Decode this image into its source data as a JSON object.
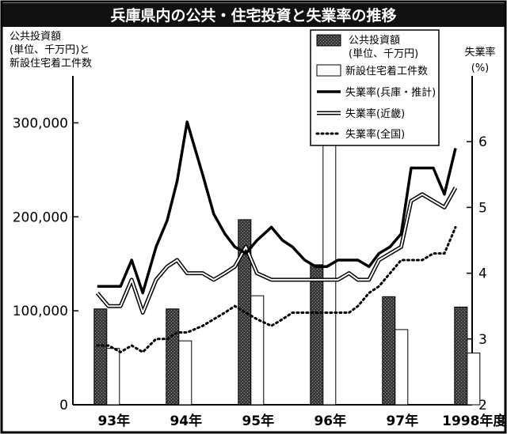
{
  "chart_data": {
    "type": "bar+line",
    "title": "兵庫県内の公共・住宅投資と失業率の推移",
    "left_axis_label": [
      "公共投資額",
      "(単位、千万円)と",
      "新設住宅着工件数"
    ],
    "right_axis_label": [
      "失業率",
      "(%)"
    ],
    "left_axis": {
      "min": 0,
      "max": 350000,
      "ticks": [
        "0",
        "100,000",
        "200,000",
        "300,000"
      ],
      "tick_values": [
        0,
        100000,
        200000,
        300000
      ]
    },
    "right_axis": {
      "min": 2,
      "max": 7,
      "ticks": [
        "2",
        "3",
        "4",
        "5",
        "6"
      ],
      "tick_values": [
        2,
        3,
        4,
        5,
        6
      ]
    },
    "x_labels": [
      "93年",
      "94年",
      "95年",
      "96年",
      "97年",
      "1998年度"
    ],
    "bar_series": [
      {
        "name": "公共投資額",
        "sub": "(単位、千万円)",
        "values": [
          102000,
          102000,
          197000,
          149000,
          115000,
          104000
        ]
      },
      {
        "name": "新設住宅着工件数",
        "values": [
          60000,
          68000,
          116000,
          342000,
          80000,
          55000
        ]
      }
    ],
    "line_series": [
      {
        "name": "失業率(兵庫・推計)",
        "style": "thick",
        "x": [
          1.1,
          1.6,
          2.15,
          2.65,
          3.15,
          3.75,
          4.25,
          4.7,
          5.15,
          5.85,
          6.35,
          6.85,
          7.3,
          7.8,
          8.3,
          8.95,
          9.45,
          9.9,
          10.45,
          10.95,
          11.45,
          11.95,
          12.45,
          12.85,
          13.35,
          13.8,
          14.3,
          14.8,
          15.25,
          15.75,
          16.25,
          16.75,
          17.25
        ],
        "values": [
          3.8,
          3.8,
          3.8,
          4.2,
          3.7,
          4.4,
          4.8,
          5.4,
          6.3,
          5.5,
          4.9,
          4.6,
          4.4,
          4.3,
          4.5,
          4.7,
          4.5,
          4.4,
          4.2,
          4.1,
          4.1,
          4.2,
          4.2,
          4.2,
          4.1,
          4.3,
          4.4,
          4.6,
          5.6,
          5.6,
          5.6,
          5.2,
          5.9
        ]
      },
      {
        "name": "失業率(近畿)",
        "style": "double",
        "x": [
          1.1,
          1.6,
          2.15,
          2.65,
          3.15,
          3.75,
          4.25,
          4.7,
          5.15,
          5.85,
          6.35,
          6.85,
          7.3,
          7.8,
          8.3,
          8.95,
          9.45,
          9.9,
          10.45,
          10.95,
          11.45,
          11.95,
          12.45,
          12.85,
          13.35,
          13.8,
          14.3,
          14.8,
          15.25,
          15.75,
          16.25,
          16.75,
          17.25
        ],
        "values": [
          3.7,
          3.5,
          3.5,
          3.9,
          3.4,
          3.9,
          4.1,
          4.2,
          4.0,
          4.0,
          3.9,
          4.0,
          4.1,
          4.4,
          4.0,
          3.9,
          3.9,
          3.9,
          3.9,
          3.9,
          3.9,
          3.9,
          4.0,
          3.9,
          3.9,
          4.2,
          4.3,
          4.4,
          5.1,
          5.2,
          5.1,
          5.0,
          5.3
        ]
      },
      {
        "name": "失業率(全国)",
        "style": "dotted",
        "x": [
          1.1,
          1.6,
          2.15,
          2.65,
          3.15,
          3.75,
          4.25,
          4.7,
          5.15,
          5.85,
          6.35,
          6.85,
          7.3,
          7.8,
          8.3,
          8.95,
          9.45,
          9.9,
          10.45,
          10.95,
          11.45,
          11.95,
          12.45,
          12.85,
          13.35,
          13.8,
          14.3,
          14.8,
          15.25,
          15.75,
          16.25,
          16.75,
          17.25
        ],
        "values": [
          2.9,
          2.9,
          2.8,
          2.9,
          2.8,
          3.0,
          3.0,
          3.1,
          3.1,
          3.2,
          3.3,
          3.4,
          3.5,
          3.4,
          3.3,
          3.2,
          3.3,
          3.4,
          3.4,
          3.4,
          3.4,
          3.4,
          3.4,
          3.5,
          3.7,
          3.8,
          4.0,
          4.2,
          4.2,
          4.2,
          4.3,
          4.3,
          4.7
        ]
      }
    ],
    "legend_position": "top-right",
    "grid": false
  }
}
